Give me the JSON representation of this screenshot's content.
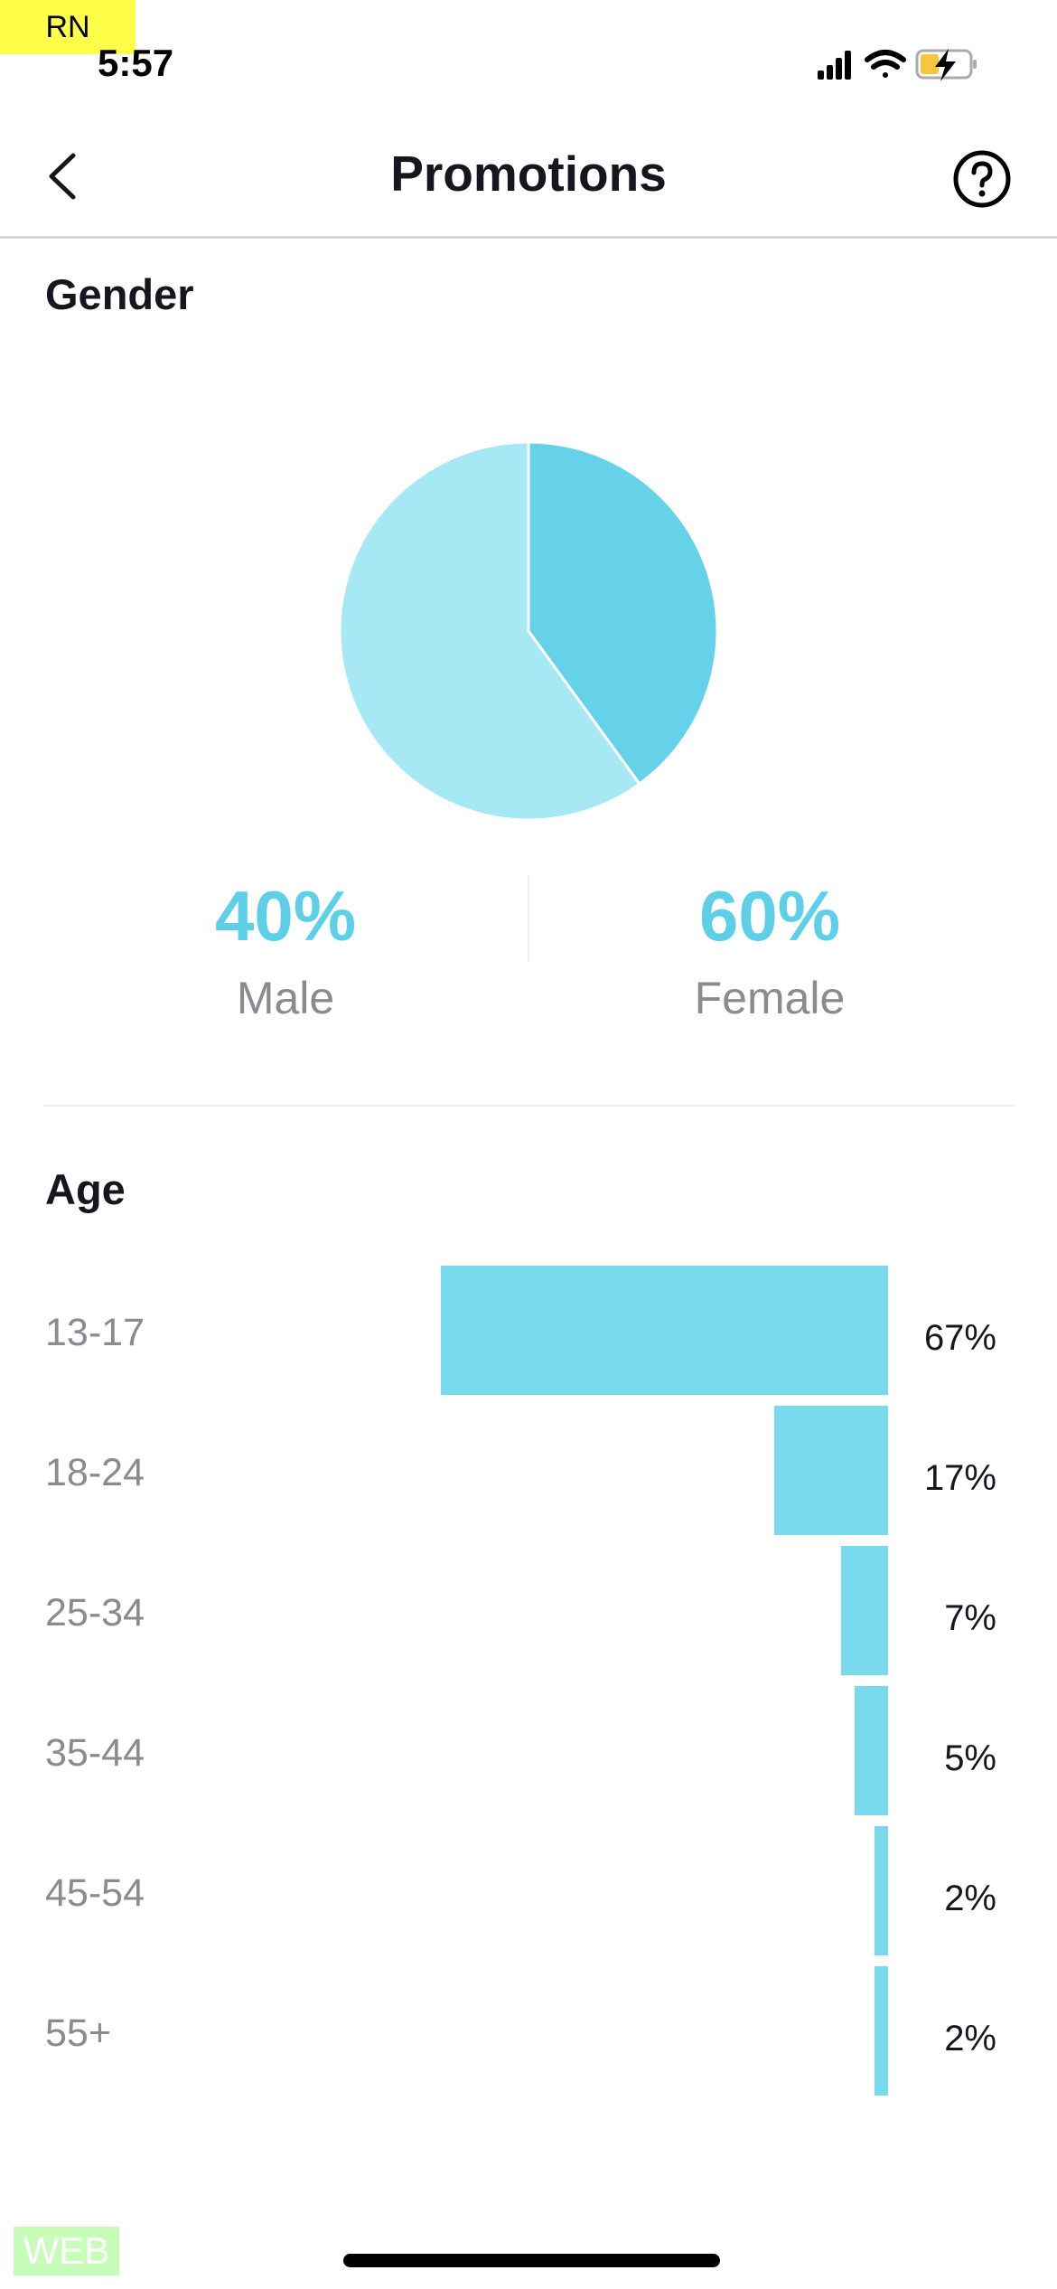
{
  "overlay": {
    "top_badge": "RN",
    "bottom_badge": "WEB"
  },
  "status_bar": {
    "time": "5:57",
    "icons": [
      "signal-icon",
      "wifi-icon",
      "battery-charging-icon"
    ]
  },
  "header": {
    "title": "Promotions",
    "back_icon": "chevron-left-icon",
    "help_icon": "question-circle-icon"
  },
  "gender": {
    "title": "Gender",
    "items": [
      {
        "label": "Male",
        "percent_text": "40%",
        "value": 40,
        "color": "#66d2ea"
      },
      {
        "label": "Female",
        "percent_text": "60%",
        "value": 60,
        "color": "#a6e8f3"
      }
    ],
    "accent": "#5dcfe8"
  },
  "age": {
    "title": "Age",
    "bar_color": "#78daec",
    "rows": [
      {
        "label": "13-17",
        "value": 67,
        "value_text": "67%"
      },
      {
        "label": "18-24",
        "value": 17,
        "value_text": "17%"
      },
      {
        "label": "25-34",
        "value": 7,
        "value_text": "7%"
      },
      {
        "label": "35-44",
        "value": 5,
        "value_text": "5%"
      },
      {
        "label": "45-54",
        "value": 2,
        "value_text": "2%"
      },
      {
        "label": "55+",
        "value": 2,
        "value_text": "2%"
      }
    ]
  }
}
